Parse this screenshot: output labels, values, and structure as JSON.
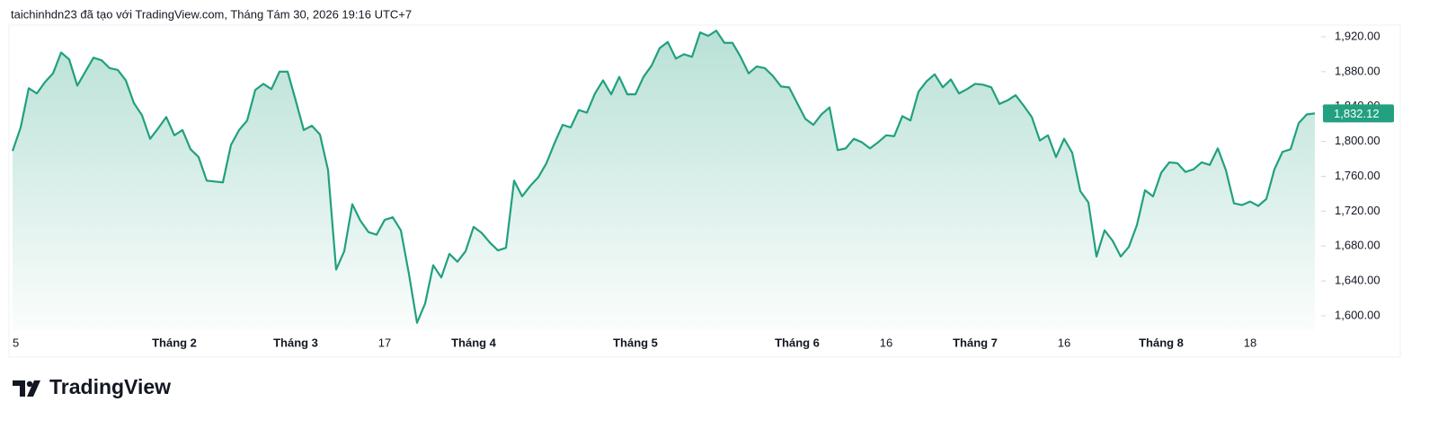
{
  "header": "taichinhdn23 đã tạo với TradingView.com, Tháng Tám 30, 2026 19:16 UTC+7",
  "brand": "TradingView",
  "chart_data": {
    "type": "area",
    "color": "#22a07f",
    "categories": [
      "5",
      null,
      null,
      null,
      null,
      null,
      null,
      null,
      null,
      null,
      null,
      null,
      null,
      null,
      null,
      null,
      null,
      null,
      null,
      null,
      "Tháng 2",
      null,
      null,
      null,
      null,
      null,
      null,
      null,
      null,
      null,
      null,
      null,
      null,
      null,
      null,
      "Tháng 3",
      null,
      null,
      null,
      null,
      null,
      null,
      null,
      null,
      null,
      null,
      "17",
      null,
      null,
      null,
      null,
      null,
      null,
      null,
      null,
      null,
      null,
      "Tháng 4",
      null,
      null,
      null,
      null,
      null,
      null,
      null,
      null,
      null,
      null,
      null,
      null,
      null,
      null,
      null,
      null,
      null,
      null,
      null,
      "Tháng 5",
      null,
      null,
      null,
      null,
      null,
      null,
      null,
      null,
      null,
      null,
      null,
      null,
      null,
      null,
      null,
      null,
      null,
      null,
      null,
      "Tháng 6",
      null,
      null,
      null,
      null,
      null,
      null,
      null,
      null,
      null,
      null,
      "16",
      null,
      null,
      null,
      null,
      null,
      null,
      null,
      null,
      null,
      null,
      "Tháng 7",
      null,
      null,
      null,
      null,
      null,
      null,
      null,
      null,
      null,
      null,
      "16",
      null,
      null,
      null,
      null,
      null,
      null,
      null,
      null,
      null,
      null,
      null,
      "Tháng 8",
      null,
      null,
      null,
      null,
      null,
      null,
      null,
      null,
      null,
      null,
      "18",
      null,
      null,
      null,
      null,
      null,
      null,
      null,
      null
    ],
    "values": [
      1789,
      1816,
      1861,
      1855,
      1868,
      1878,
      1902,
      1894,
      1864,
      1880,
      1896,
      1893,
      1884,
      1882,
      1870,
      1844,
      1830,
      1803,
      1815,
      1828,
      1807,
      1813,
      1791,
      1782,
      1755,
      1754,
      1753,
      1796,
      1813,
      1824,
      1859,
      1866,
      1860,
      1880,
      1880,
      1847,
      1813,
      1818,
      1808,
      1767,
      1653,
      1674,
      1728,
      1709,
      1696,
      1693,
      1710,
      1713,
      1698,
      1648,
      1592,
      1614,
      1658,
      1644,
      1671,
      1662,
      1674,
      1702,
      1695,
      1684,
      1675,
      1678,
      1755,
      1737,
      1749,
      1759,
      1775,
      1798,
      1819,
      1816,
      1836,
      1833,
      1855,
      1870,
      1854,
      1874,
      1854,
      1854,
      1874,
      1887,
      1907,
      1914,
      1895,
      1900,
      1897,
      1925,
      1921,
      1927,
      1913,
      1913,
      1897,
      1878,
      1886,
      1884,
      1875,
      1863,
      1862,
      1844,
      1826,
      1819,
      1831,
      1839,
      1790,
      1792,
      1803,
      1799,
      1792,
      1799,
      1807,
      1806,
      1829,
      1824,
      1857,
      1869,
      1877,
      1862,
      1871,
      1855,
      1860,
      1866,
      1865,
      1862,
      1843,
      1847,
      1853,
      1841,
      1828,
      1801,
      1807,
      1782,
      1803,
      1787,
      1743,
      1730,
      1668,
      1698,
      1686,
      1668,
      1679,
      1704,
      1744,
      1737,
      1764,
      1776,
      1775,
      1765,
      1768,
      1776,
      1773,
      1792,
      1767,
      1729,
      1727,
      1731,
      1726,
      1734,
      1768,
      1788,
      1791,
      1821,
      1831,
      1832.12
    ],
    "ylim": [
      1583.5,
      1931.3
    ],
    "yticks": [
      {
        "value": 1600,
        "label": "1,600.00"
      },
      {
        "value": 1640,
        "label": "1,640.00"
      },
      {
        "value": 1680,
        "label": "1,680.00"
      },
      {
        "value": 1720,
        "label": "1,720.00"
      },
      {
        "value": 1760,
        "label": "1,760.00"
      },
      {
        "value": 1800,
        "label": "1,800.00"
      },
      {
        "value": 1840,
        "label": "1,840.00"
      },
      {
        "value": 1880,
        "label": "1,880.00"
      },
      {
        "value": 1920,
        "label": "1,920.00"
      }
    ],
    "last_value": {
      "value": 1832.12,
      "label": "1,832.12"
    }
  }
}
